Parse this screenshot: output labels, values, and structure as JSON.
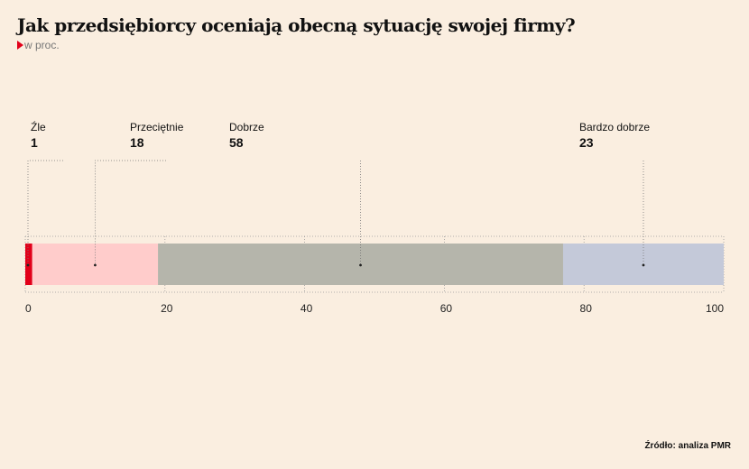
{
  "title": "Jak przedsiębiorcy oceniają obecną sytuację swojej firmy?",
  "subtitle": "w proc.",
  "source": "Źródło: analiza PMR",
  "chart_data": {
    "type": "bar",
    "stacked": true,
    "orientation": "horizontal",
    "xlim": [
      0,
      100
    ],
    "xticks": [
      0,
      20,
      40,
      60,
      80,
      100
    ],
    "grid": true,
    "series": [
      {
        "name": "Źle",
        "value": 1,
        "color": "#e2001a"
      },
      {
        "name": "Przeciętnie",
        "value": 18,
        "color": "#ffcccb"
      },
      {
        "name": "Dobrze",
        "value": 58,
        "color": "#b5b5ab"
      },
      {
        "name": "Bardzo dobrze",
        "value": 23,
        "color": "#c4c9d9"
      }
    ]
  }
}
